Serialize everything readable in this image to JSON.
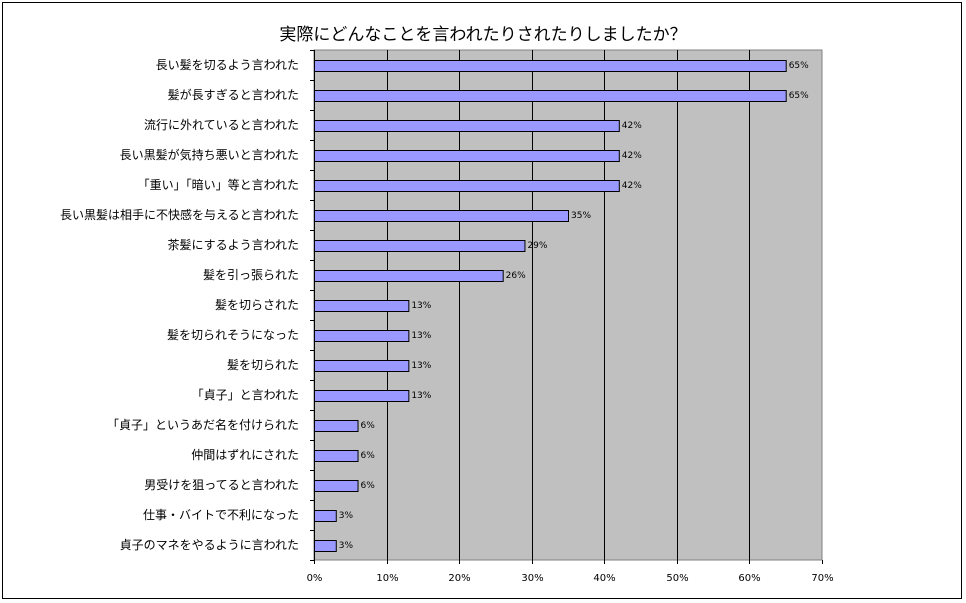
{
  "chart_data": {
    "type": "bar",
    "orientation": "horizontal",
    "title": "実際にどんなことを言われたりされたりしましたか？",
    "categories": [
      "長い髪を切るよう言われた",
      "髪が長すぎると言われた",
      "流行に外れていると言われた",
      "長い黒髪が気持ち悪いと言われた",
      "「重い」「暗い」等と言われた",
      "長い黒髪は相手に不快感を与えると言われた",
      "茶髪にするよう言われた",
      "髪を引っ張られた",
      "髪を切らされた",
      "髪を切られそうになった",
      "髪を切られた",
      "「貞子」と言われた",
      "「貞子」というあだ名を付けられた",
      "仲間はずれにされた",
      "男受けを狙ってると言われた",
      "仕事・バイトで不利になった",
      "貞子のマネをやるように言われた"
    ],
    "values": [
      65,
      65,
      42,
      42,
      42,
      35,
      29,
      26,
      13,
      13,
      13,
      13,
      6,
      6,
      6,
      3,
      3
    ],
    "value_labels": [
      "65%",
      "65%",
      "42%",
      "42%",
      "42%",
      "35%",
      "29%",
      "26%",
      "13%",
      "13%",
      "13%",
      "13%",
      "6%",
      "6%",
      "6%",
      "3%",
      "3%"
    ],
    "xlim": [
      0,
      70
    ],
    "xticks": [
      0,
      10,
      20,
      30,
      40,
      50,
      60,
      70
    ],
    "xtick_labels": [
      "0%",
      "10%",
      "20%",
      "30%",
      "40%",
      "50%",
      "60%",
      "70%"
    ],
    "xlabel": "",
    "ylabel": "",
    "grid": true,
    "legend": "none",
    "colors": {
      "bar_fill": "#9999ff",
      "bar_stroke": "#000000",
      "plot_background": "#c0c0c0",
      "gridline": "#000000"
    }
  }
}
